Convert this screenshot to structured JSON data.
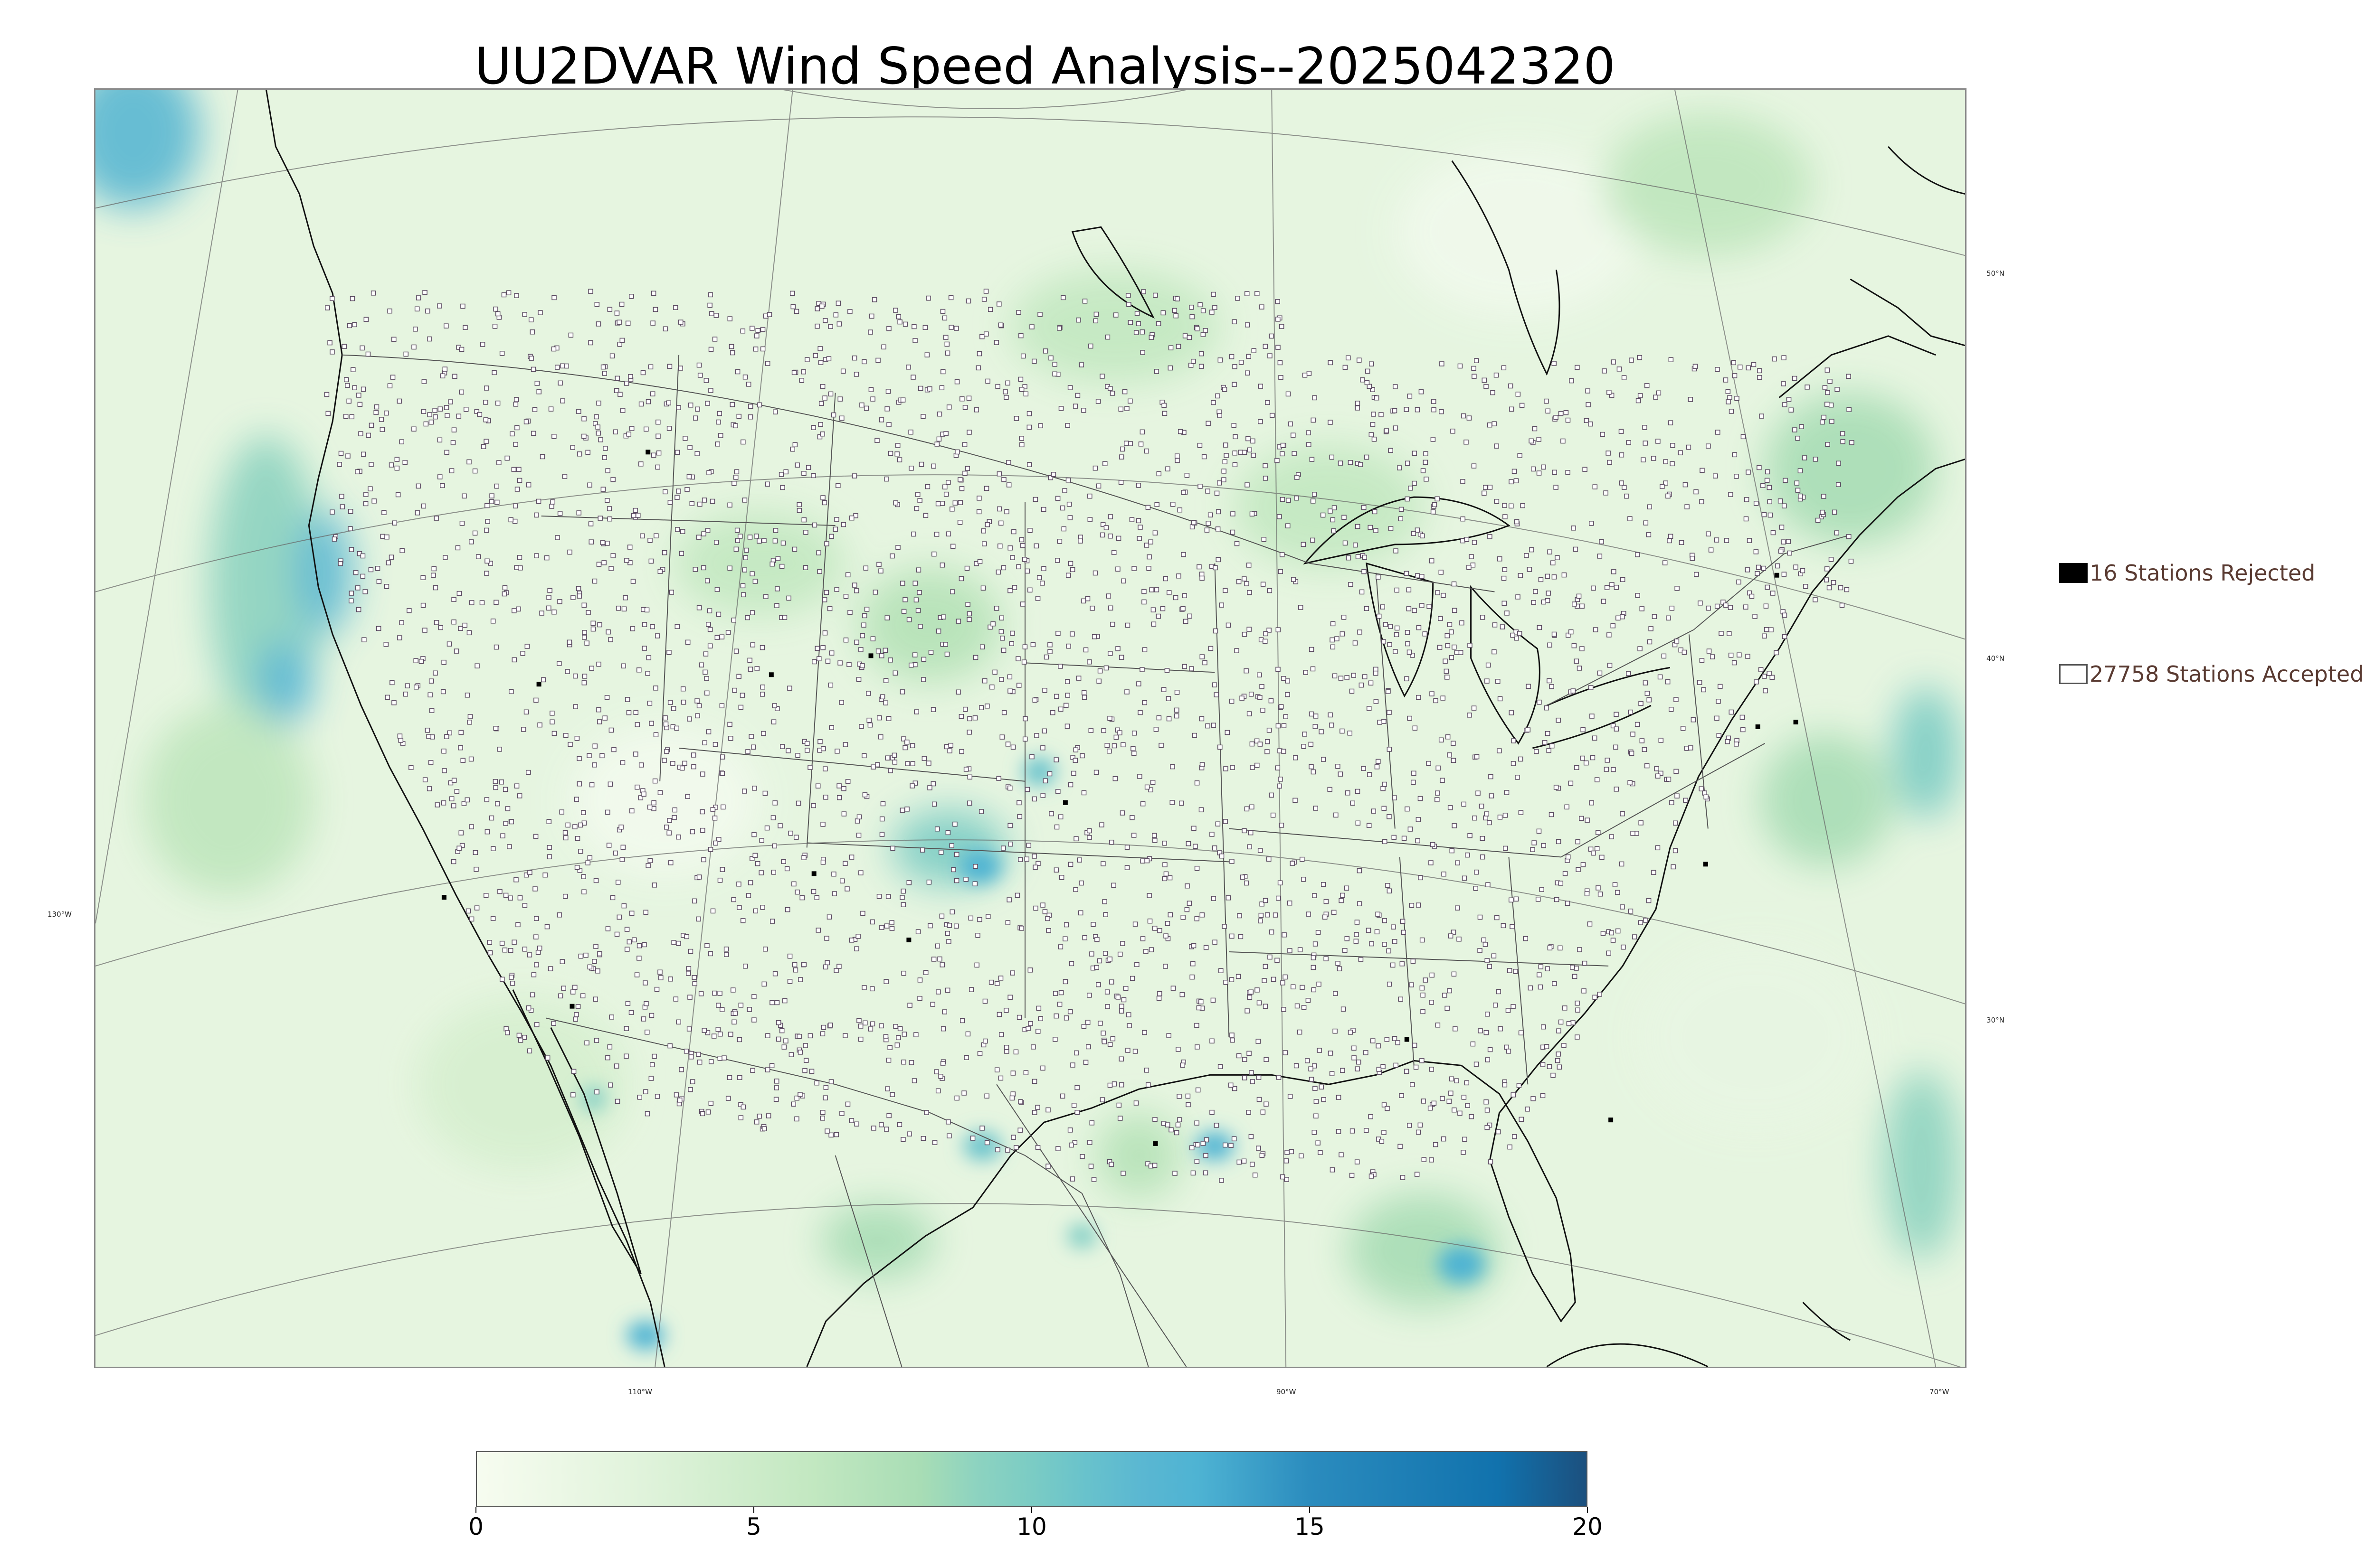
{
  "title": "UU2DVAR Wind Speed Analysis--2025042320",
  "map": {
    "projection": "lambert-conformal",
    "field": "wind speed",
    "background_color": "#eaf6e4",
    "coastline_color": "#000000",
    "border_color": "#555555",
    "station_marker": "small open square"
  },
  "gridline_labels": {
    "lat": [
      "50°N",
      "40°N",
      "30°N"
    ],
    "lon_bottom": [
      "110°W",
      "90°W",
      "70°W"
    ],
    "lon_left": [
      "130°W"
    ]
  },
  "legend": {
    "rejected": {
      "label": "16 Stations Rejected",
      "swatch_color": "#000000"
    },
    "accepted": {
      "label": "27758 Stations Accepted",
      "swatch_color": "#ffffff"
    }
  },
  "colorbar": {
    "min": 0,
    "max": 20,
    "ticks": [
      {
        "value": 0,
        "label": "0"
      },
      {
        "value": 5,
        "label": "5"
      },
      {
        "value": 10,
        "label": "10"
      },
      {
        "value": 15,
        "label": "15"
      },
      {
        "value": 20,
        "label": "20"
      }
    ],
    "stops": [
      {
        "value": 0,
        "color": "#f7fcf0"
      },
      {
        "value": 3,
        "color": "#e0f3db"
      },
      {
        "value": 6,
        "color": "#c3e8c1"
      },
      {
        "value": 8,
        "color": "#a8ddb5"
      },
      {
        "value": 9,
        "color": "#8dd3c0"
      },
      {
        "value": 10,
        "color": "#7bccc4"
      },
      {
        "value": 11,
        "color": "#68c2cc"
      },
      {
        "value": 12,
        "color": "#5ab7d2"
      },
      {
        "value": 13,
        "color": "#4eb3d3"
      },
      {
        "value": 15,
        "color": "#2b8cbe"
      },
      {
        "value": 18.4,
        "color": "#1172ad"
      },
      {
        "value": 20,
        "color": "#1c507e"
      }
    ]
  }
}
